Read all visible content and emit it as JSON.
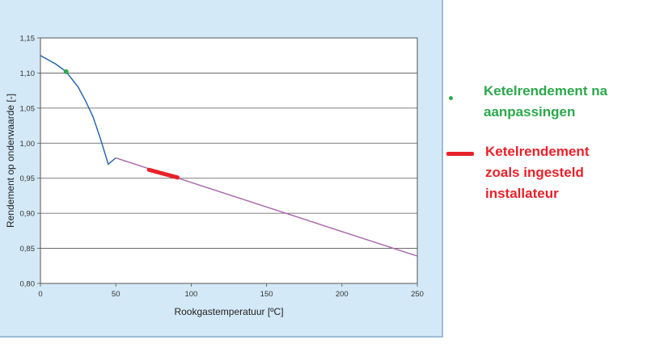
{
  "chart_data": {
    "type": "line",
    "xlabel": "Rookgastemperatuur [ºC]",
    "ylabel": "Rendement op onderwaarde [-]",
    "xlim": [
      0,
      250
    ],
    "ylim": [
      0.8,
      1.15
    ],
    "xticks": [
      "0",
      "50",
      "100",
      "150",
      "200",
      "250"
    ],
    "yticks": [
      "0,80",
      "0,85",
      "0,90",
      "0,95",
      "1,00",
      "1,05",
      "1,10",
      "1,15"
    ],
    "grid": "horizontal",
    "series": [
      {
        "color": "#1f5fa8",
        "x": [
          0,
          10,
          17,
          25,
          30,
          35,
          40,
          45,
          50
        ],
        "y": [
          1.125,
          1.113,
          1.102,
          1.08,
          1.06,
          1.037,
          1.005,
          0.97,
          0.979
        ]
      },
      {
        "color": "#a866a8",
        "x": [
          50,
          250
        ],
        "y": [
          0.979,
          0.839
        ]
      }
    ],
    "markers": [
      {
        "name": "Ketelrendement na aanpassingen",
        "color": "#2ca84b",
        "x": 17,
        "y": 1.102
      },
      {
        "name": "Ketelrendement zoals ingesteld installateur",
        "color": "#e8212a",
        "x_range": [
          72,
          91
        ],
        "y_range": [
          0.962,
          0.951
        ]
      }
    ],
    "legend_position": "right"
  },
  "legend": {
    "green_label": "Ketelrendement na aanpassingen",
    "red_label": "Ketelrendement zoals ingesteld installateur"
  }
}
